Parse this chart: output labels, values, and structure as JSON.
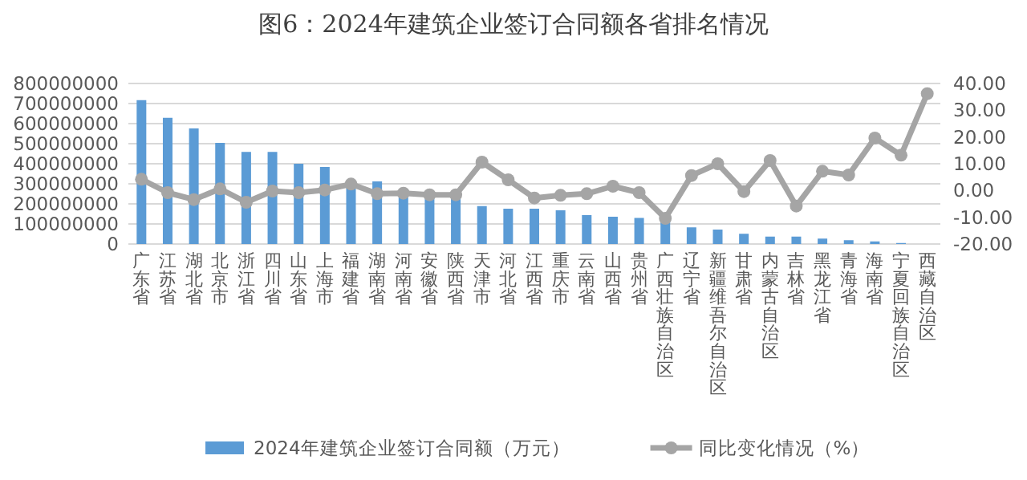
{
  "chart_data": {
    "type": "bar",
    "title": "图6：2024年建筑企业签订合同额各省排名情况",
    "categories": [
      "广东省",
      "江苏省",
      "湖北省",
      "北京市",
      "浙江省",
      "四川省",
      "山东省",
      "上海市",
      "福建省",
      "湖南省",
      "河南省",
      "安徽省",
      "陕西省",
      "天津市",
      "河北省",
      "江西省",
      "重庆市",
      "云南省",
      "山西省",
      "贵州省",
      "广西壮族自治区",
      "辽宁省",
      "新疆维吾尔自治区",
      "甘肃省",
      "内蒙古自治区",
      "吉林省",
      "黑龙江省",
      "青海省",
      "海南省",
      "宁夏回族自治区",
      "西藏自治区"
    ],
    "series": [
      {
        "name": "2024年建筑企业签订合同额（万元）",
        "color": "#5b9bd5",
        "values": [
          717000000,
          629000000,
          576000000,
          504000000,
          459000000,
          459000000,
          400000000,
          384000000,
          305000000,
          312000000,
          260000000,
          250000000,
          245000000,
          189000000,
          176000000,
          176000000,
          168000000,
          144000000,
          136000000,
          130000000,
          117000000,
          83000000,
          72000000,
          51000000,
          37000000,
          37000000,
          27000000,
          19000000,
          13000000,
          5000000,
          null
        ]
      },
      {
        "name": "同比变化情况（%）",
        "type": "line",
        "axis": "y2",
        "color": "#a5a5a5",
        "marker": "circle",
        "values": [
          4.2,
          -0.8,
          -3.4,
          0.6,
          -4.4,
          -0.2,
          -0.8,
          0.2,
          2.4,
          -1.2,
          -1.0,
          -1.6,
          -1.6,
          10.6,
          4.0,
          -2.8,
          -1.8,
          -1.2,
          1.6,
          -0.8,
          -10.4,
          5.6,
          10.0,
          -0.4,
          11.2,
          -5.8,
          7.2,
          5.8,
          19.6,
          13.2,
          36.2
        ]
      }
    ],
    "ylim": [
      0,
      800000000
    ],
    "yticks": [
      0,
      100000000,
      200000000,
      300000000,
      400000000,
      500000000,
      600000000,
      700000000,
      800000000
    ],
    "y2lim": [
      -20,
      40
    ],
    "y2ticks": [
      {
        "value": -20,
        "label": "-20.00"
      },
      {
        "value": -10,
        "label": "-10.00"
      },
      {
        "value": 0,
        "label": "0.00"
      },
      {
        "value": 10,
        "label": "10.00"
      },
      {
        "value": 20,
        "label": "20.00"
      },
      {
        "value": 30,
        "label": "30.00"
      },
      {
        "value": 40,
        "label": "40.00"
      }
    ],
    "grid": "y",
    "legend": "bottom"
  }
}
